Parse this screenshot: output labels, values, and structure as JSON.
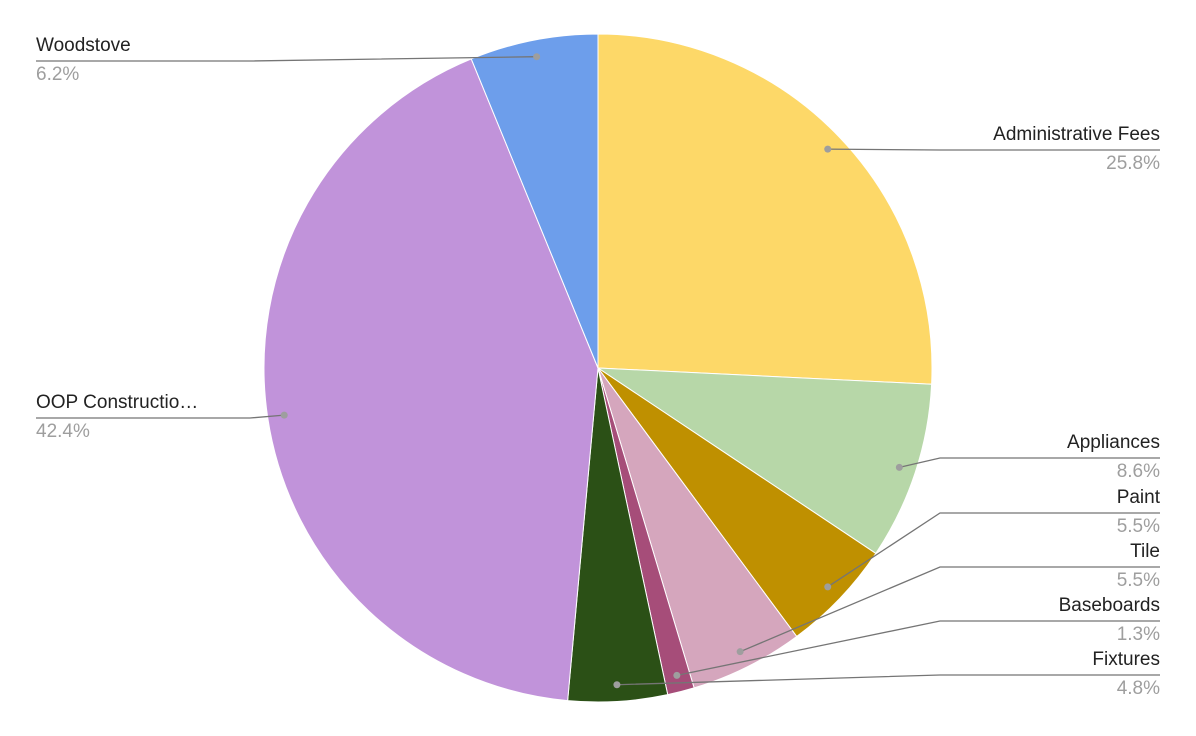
{
  "chart_data": {
    "type": "pie",
    "categories": [
      "Administrative Fees",
      "Appliances",
      "Paint",
      "Tile",
      "Baseboards",
      "Fixtures",
      "OOP Constructio…",
      "Woodstove"
    ],
    "values": [
      25.8,
      8.6,
      5.5,
      5.5,
      1.3,
      4.8,
      42.4,
      6.2
    ],
    "value_labels": [
      "25.8%",
      "8.6%",
      "5.5%",
      "5.5%",
      "1.3%",
      "4.8%",
      "42.4%",
      "6.2%"
    ],
    "colors": [
      "#fdd868",
      "#b7d7a8",
      "#bf9000",
      "#d5a6bd",
      "#a64d79",
      "#2b5016",
      "#c193da",
      "#6d9eeb"
    ]
  }
}
